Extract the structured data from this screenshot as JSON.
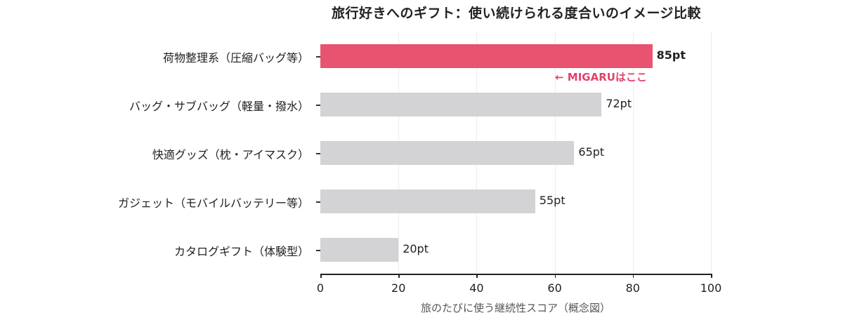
{
  "chart_data": {
    "type": "bar",
    "orientation": "horizontal",
    "title": "旅行好きへのギフト：使い続けられる度合いのイメージ比較",
    "xlabel": "旅のたびに使う継続性スコア（概念図）",
    "ylabel": "",
    "xlim": [
      0,
      100
    ],
    "xticks": [
      0,
      20,
      40,
      60,
      80,
      100
    ],
    "grid": "vertical",
    "categories": [
      "荷物整理系（圧縮バッグ等）",
      "バッグ・サブバッグ（軽量・撥水）",
      "快適グッズ（枕・アイマスク）",
      "ガジェット（モバイルバッテリー等）",
      "カタログギフト（体験型）"
    ],
    "values": [
      85,
      72,
      65,
      55,
      20
    ],
    "value_labels": [
      "85pt",
      "72pt",
      "65pt",
      "55pt",
      "20pt"
    ],
    "colors": [
      "#e8536f",
      "#d3d2d4",
      "#d3d2d4",
      "#d3d2d4",
      "#d3d2d4"
    ],
    "highlight_index": 0,
    "annotation": {
      "text": "← MIGARUはここ",
      "color": "#e0436a",
      "target_index": 0
    }
  },
  "theme": {
    "highlight": "#e8536f",
    "bar": "#d3d2d4",
    "annotation": "#e0436a"
  }
}
